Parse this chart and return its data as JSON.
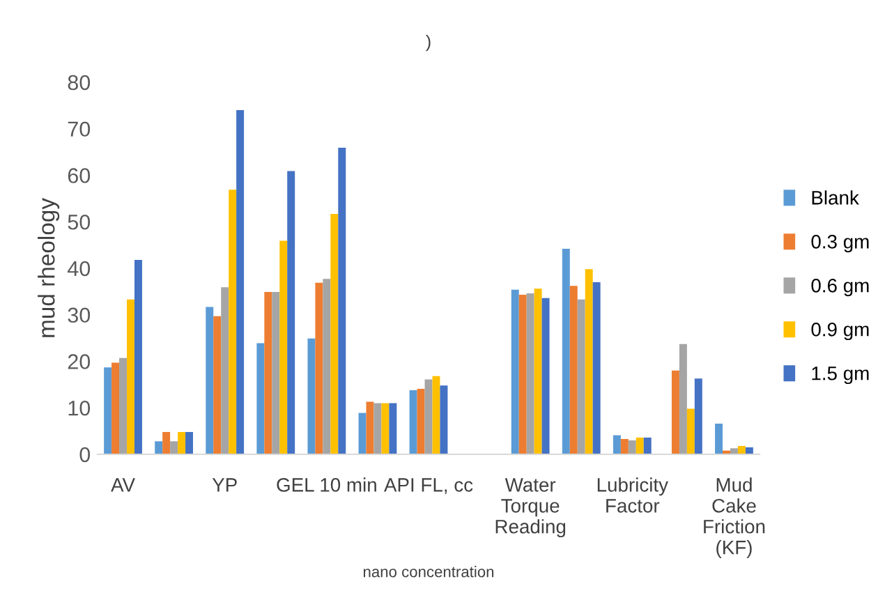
{
  "chart_data": {
    "type": "bar",
    "title": ")",
    "xlabel": "nano concentration",
    "ylabel": "mud rheology",
    "categories": [
      "AV",
      null,
      "YP",
      null,
      "GEL 10 min",
      null,
      "API FL, cc",
      null,
      "Water Torque Reading",
      null,
      "Lubricity Factor",
      null,
      "Mud Cake Friction (KF)"
    ],
    "series": [
      {
        "name": "Blank",
        "color": "#5b9bd5",
        "values": [
          18.7,
          2.8,
          31.7,
          23.9,
          24.9,
          8.9,
          13.8,
          null,
          35.4,
          44.2,
          4.1,
          null,
          6.6
        ]
      },
      {
        "name": "0.3 gm",
        "color": "#ed7d31",
        "values": [
          19.7,
          4.8,
          29.7,
          34.9,
          36.9,
          11.3,
          14.1,
          null,
          34.3,
          36.2,
          3.3,
          18,
          0.8
        ]
      },
      {
        "name": "0.6 gm",
        "color": "#a5a5a5",
        "values": [
          20.7,
          2.8,
          35.9,
          34.9,
          37.7,
          11,
          16.1,
          null,
          34.6,
          33.3,
          3,
          23.7,
          1.3
        ]
      },
      {
        "name": "0.9 gm",
        "color": "#ffc000",
        "values": [
          33.3,
          4.8,
          56.9,
          45.9,
          51.7,
          11,
          16.8,
          null,
          35.6,
          39.8,
          3.6,
          9.8,
          1.8
        ]
      },
      {
        "name": "1.5 gm",
        "color": "#4472c4",
        "values": [
          41.8,
          4.8,
          74,
          60.9,
          65.9,
          11,
          14.8,
          null,
          33.6,
          37,
          3.6,
          16.3,
          1.5
        ]
      }
    ],
    "ylim": [
      0,
      80
    ],
    "yticks": [
      0,
      10,
      20,
      30,
      40,
      50,
      60,
      70,
      80
    ],
    "grid": false,
    "legend": "right"
  }
}
